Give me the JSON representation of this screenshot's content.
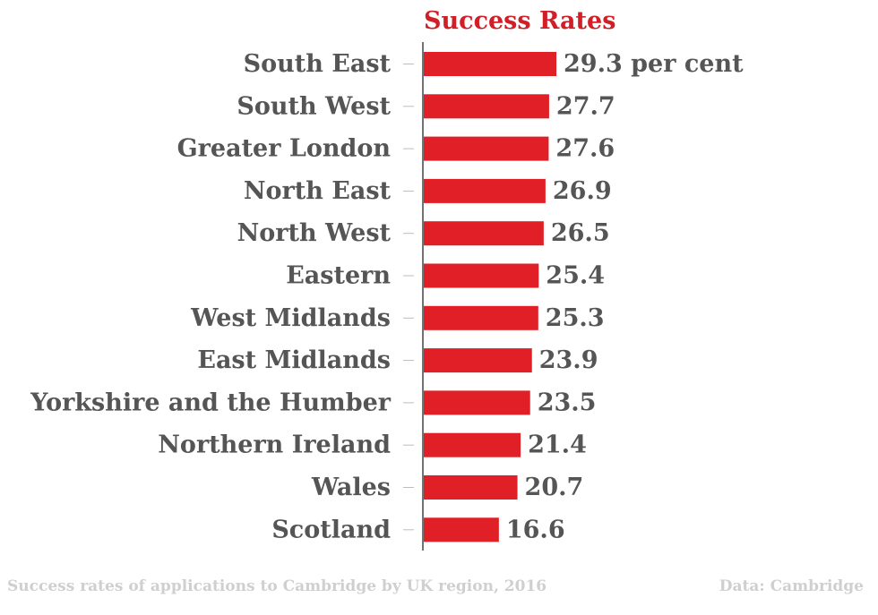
{
  "chart_data": {
    "type": "bar",
    "orientation": "horizontal",
    "title": "Success Rates",
    "categories": [
      "South East",
      "South West",
      "Greater London",
      "North East",
      "North West",
      "Eastern",
      "West Midlands",
      "East Midlands",
      "Yorkshire and the Humber",
      "Northern Ireland",
      "Wales",
      "Scotland"
    ],
    "values": [
      29.3,
      27.7,
      27.6,
      26.9,
      26.5,
      25.4,
      25.3,
      23.9,
      23.5,
      21.4,
      20.7,
      16.6
    ],
    "data_labels": [
      "29.3 per cent",
      "27.7",
      "27.6",
      "26.9",
      "26.5",
      "25.4",
      "25.3",
      "23.9",
      "23.5",
      "21.4",
      "20.7",
      "16.6"
    ],
    "xlim": [
      0,
      29.3
    ],
    "grid": false,
    "legend": "none",
    "colors": {
      "bar": "#e01f26",
      "title": "#d01f26",
      "text": "#555555",
      "footer": "#cfcfcf",
      "axis": "#444444"
    }
  },
  "footer": {
    "caption": "Success rates of applications to Cambridge by UK region, 2016",
    "source": "Data: Cambridge"
  }
}
